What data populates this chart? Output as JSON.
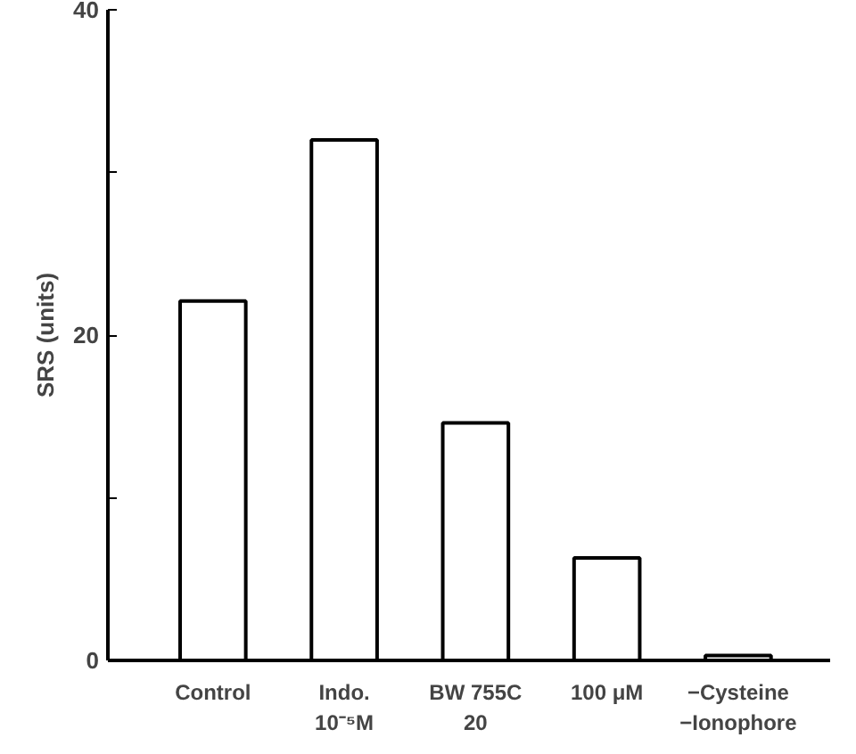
{
  "chart_data": {
    "type": "bar",
    "ylabel": "SRS (units)",
    "categories": [
      "Control",
      "Indo.\n10⁻⁵M",
      "BW 755C\n20",
      "100 μM",
      "−Cysteine\n−Ionophore"
    ],
    "values": [
      22.1,
      32.0,
      14.6,
      6.3,
      0.3
    ],
    "color": "#ffffff",
    "ylim": [
      0,
      40
    ],
    "yticks": [
      0,
      {
        "value": 10,
        "label": null
      },
      20,
      {
        "value": 30,
        "label": null
      },
      40
    ],
    "grid": false
  }
}
